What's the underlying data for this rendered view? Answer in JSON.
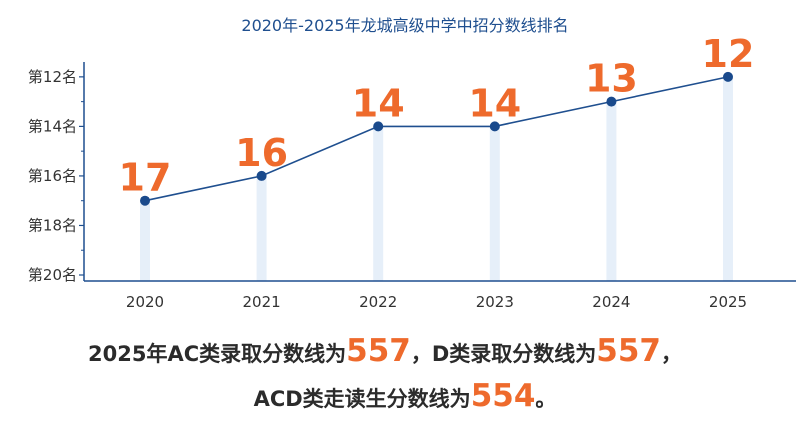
{
  "chart_data": {
    "type": "line",
    "title": "2020年-2025年龙城高级中学中招分数线排名",
    "categories": [
      "2020",
      "2021",
      "2022",
      "2023",
      "2024",
      "2025"
    ],
    "series": [
      {
        "values": [
          17,
          16,
          14,
          14,
          13,
          12
        ]
      }
    ],
    "data_labels": [
      "17",
      "16",
      "14",
      "14",
      "13",
      "12"
    ],
    "y_ticks": [
      {
        "value": 12,
        "label": "第12名"
      },
      {
        "value": 14,
        "label": "第14名"
      },
      {
        "value": 16,
        "label": "第16名"
      },
      {
        "value": 18,
        "label": "第18名"
      },
      {
        "value": 20,
        "label": "第20名"
      }
    ],
    "ylim": [
      20,
      11.4
    ],
    "y_inverted": true,
    "legend": "none",
    "grid": false,
    "colors": {
      "line": "#1f4f8f",
      "marker": "#1a4a8c",
      "axis": "#1f4f8f",
      "drop_bar": "#e6eff9",
      "label": "#ee6a2c"
    }
  },
  "note": {
    "line1_part1": "2025年AC类录取分数线为",
    "line1_value1": "557",
    "line1_part2": "，D类录取分数线为",
    "line1_value2": "557",
    "line1_part3": "，",
    "line2_part1": "ACD类走读生分数线为",
    "line2_value": "554",
    "line2_part2": "。"
  }
}
